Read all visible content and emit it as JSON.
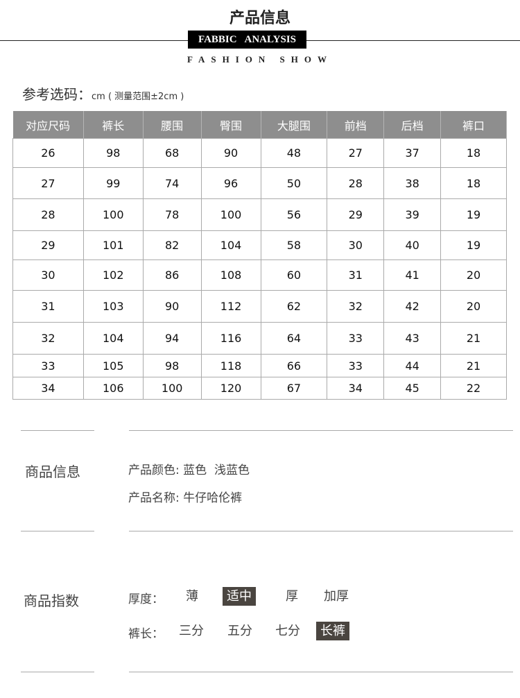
{
  "header": {
    "title": "产品信息",
    "badge": "FABBIC ANALYSIS",
    "subtitle": "FASHION SHOW"
  },
  "size_ref": {
    "label": "参考选码：",
    "unit": "cm ( 测量范围±2cm )"
  },
  "table": {
    "headers": [
      "对应尺码",
      "裤长",
      "腰围",
      "臀围",
      "大腿围",
      "前档",
      "后档",
      "裤口"
    ],
    "rows": [
      [
        "26",
        "98",
        "68",
        "90",
        "48",
        "27",
        "37",
        "18"
      ],
      [
        "27",
        "99",
        "74",
        "96",
        "50",
        "28",
        "38",
        "18"
      ],
      [
        "28",
        "100",
        "78",
        "100",
        "56",
        "29",
        "39",
        "19"
      ],
      [
        "29",
        "101",
        "82",
        "104",
        "58",
        "30",
        "40",
        "19"
      ],
      [
        "30",
        "102",
        "86",
        "108",
        "60",
        "31",
        "41",
        "20"
      ],
      [
        "31",
        "103",
        "90",
        "112",
        "62",
        "32",
        "42",
        "20"
      ],
      [
        "32",
        "104",
        "94",
        "116",
        "64",
        "33",
        "43",
        "21"
      ],
      [
        "33",
        "105",
        "98",
        "118",
        "66",
        "33",
        "44",
        "21"
      ],
      [
        "34",
        "106",
        "100",
        "120",
        "67",
        "34",
        "45",
        "22"
      ]
    ]
  },
  "product_info": {
    "heading": "商品信息",
    "color_label": "产品颜色:",
    "color_value": "蓝色  浅蓝色",
    "name_label": "产品名称:",
    "name_value": "牛仔哈伦裤"
  },
  "product_index": {
    "heading": "商品指数",
    "thickness": {
      "label": "厚度：",
      "options": [
        "薄",
        "适中",
        "厚",
        "加厚"
      ],
      "selected": "适中"
    },
    "length": {
      "label": "裤长：",
      "options": [
        "三分",
        "五分",
        "七分",
        "长裤"
      ],
      "selected": "长裤"
    }
  },
  "colors": {
    "selected_bg": "#4a4540",
    "header_bg": "#8e8e8e"
  }
}
